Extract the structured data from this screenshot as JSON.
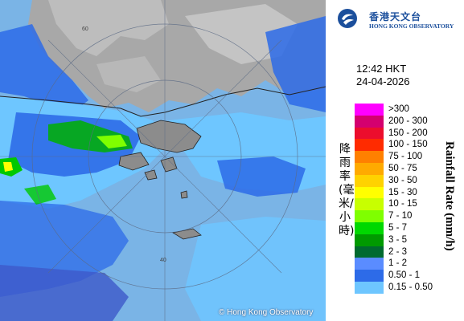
{
  "logo": {
    "chinese_name": "香港天文台",
    "english_name": "HONG KONG OBSERVATORY",
    "icon": "hko-logo-icon",
    "color": "#1b4f9c"
  },
  "timestamp": {
    "time": "12:42 HKT",
    "date": "24-04-2026"
  },
  "legend": {
    "title_zh": "降雨率(毫米/小時)",
    "title_en": "Rainfall Rate (mm/h)",
    "items": [
      {
        "label": ">300",
        "color": "#ff00ff"
      },
      {
        "label": "200 - 300",
        "color": "#d4006f"
      },
      {
        "label": "150 - 200",
        "color": "#ec0d2d"
      },
      {
        "label": "100 - 150",
        "color": "#ff2b00"
      },
      {
        "label": "75 - 100",
        "color": "#ff8000"
      },
      {
        "label": "50 - 75",
        "color": "#ffaa00"
      },
      {
        "label": "30 - 50",
        "color": "#ffd200"
      },
      {
        "label": "15 - 30",
        "color": "#ffff00"
      },
      {
        "label": "10 - 15",
        "color": "#c8ff00"
      },
      {
        "label": "7 - 10",
        "color": "#7fff00"
      },
      {
        "label": "5 - 7",
        "color": "#00d800"
      },
      {
        "label": "3 - 5",
        "color": "#009a00"
      },
      {
        "label": "2 - 3",
        "color": "#006a2f"
      },
      {
        "label": "1 - 2",
        "color": "#5a8cff"
      },
      {
        "label": "0.50 - 1",
        "color": "#2d6be8"
      },
      {
        "label": "0.15 - 0.50",
        "color": "#6ec6ff"
      }
    ]
  },
  "map": {
    "range_ring_labels": [
      "60",
      "40"
    ],
    "copyright": "© Hong Kong Observatory",
    "colors": {
      "sea": "#93c7ee",
      "land": "#9a9a9a",
      "cloud": "#c9c9c9",
      "light_rain": "#6ec6ff",
      "moderate_rain": "#2d6be8",
      "green": "#00c800",
      "yellow": "#ffff00"
    }
  }
}
